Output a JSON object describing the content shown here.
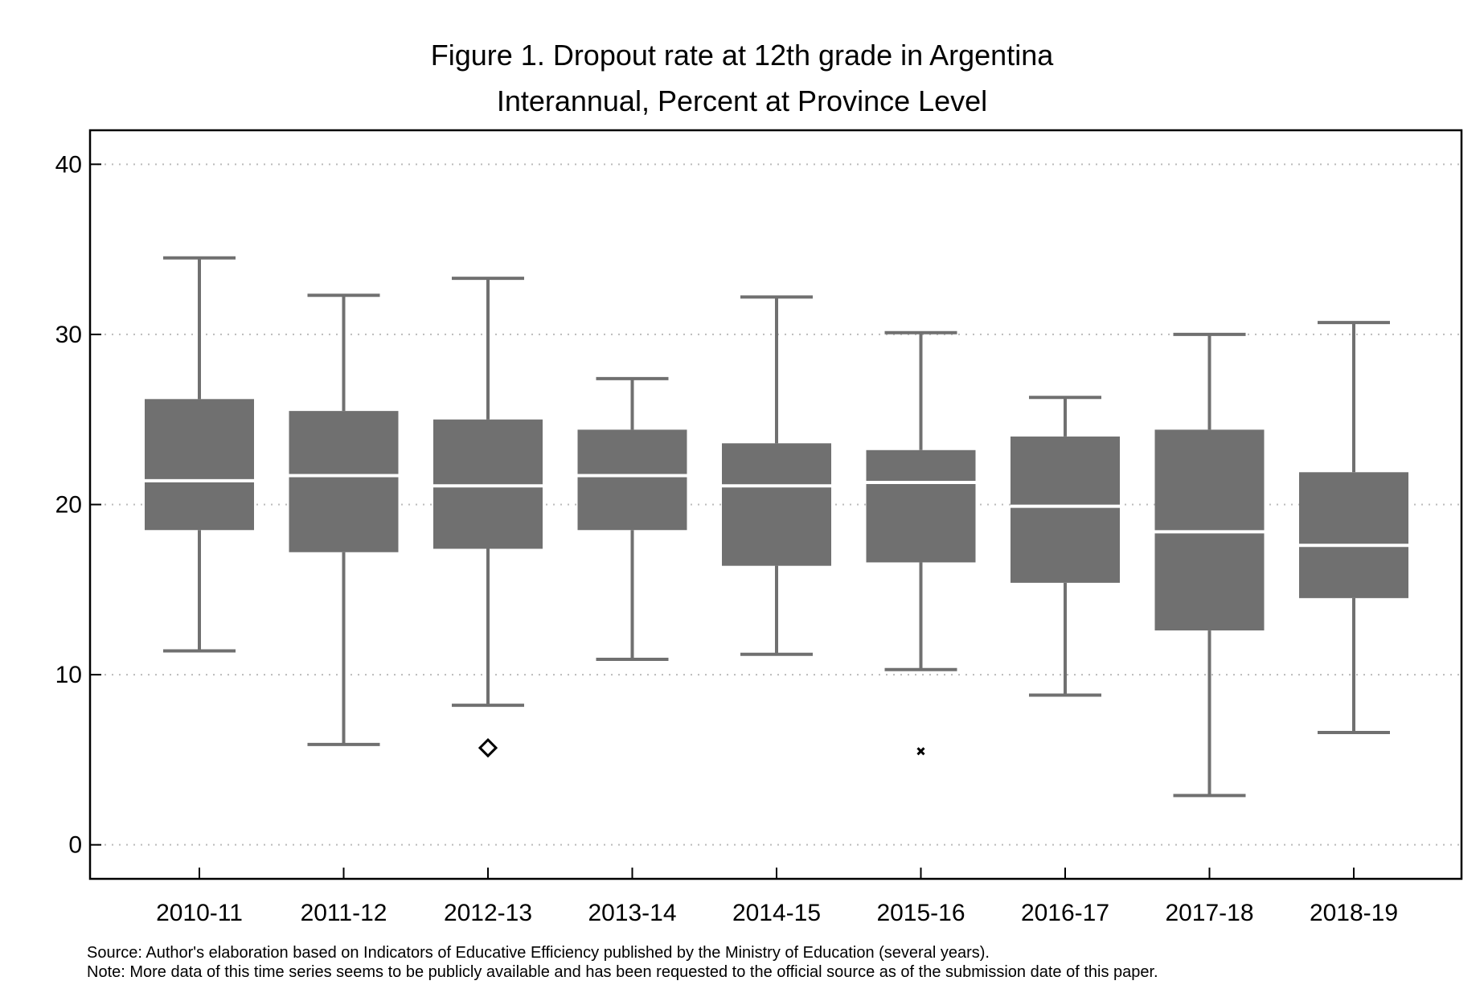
{
  "figure": {
    "title": "Figure 1. Dropout rate at 12th grade in Argentina",
    "subtitle": "Interannual, Percent at Province Level",
    "source": "Source: Author's elaboration based on Indicators of Educative Efficiency published by the Ministry of Education (several years).",
    "note": "Note: More data of this time series seems to be publicly available and has been requested to the official source as of the submission date of this paper."
  },
  "colors": {
    "box": "#707070",
    "median": "#ffffff",
    "grid": "#bbbbbb",
    "frame": "#000000"
  },
  "chart_data": {
    "type": "boxplot",
    "title": "Figure 1. Dropout rate at 12th grade in Argentina",
    "subtitle": "Interannual, Percent at Province Level",
    "xlabel": "",
    "ylabel": "",
    "ylim": [
      -2,
      42
    ],
    "yticks": [
      0,
      10,
      20,
      30,
      40
    ],
    "grid": "horizontal dotted",
    "legend": "none",
    "categories": [
      "2010-11",
      "2011-12",
      "2012-13",
      "2013-14",
      "2014-15",
      "2015-16",
      "2016-17",
      "2017-18",
      "2018-19"
    ],
    "boxes": [
      {
        "label": "2010-11",
        "min": 11.4,
        "q1": 18.5,
        "median": 21.4,
        "q3": 26.2,
        "max": 34.5
      },
      {
        "label": "2011-12",
        "min": 5.9,
        "q1": 17.2,
        "median": 21.7,
        "q3": 25.5,
        "max": 32.3
      },
      {
        "label": "2012-13",
        "min": 8.2,
        "q1": 17.4,
        "median": 21.1,
        "q3": 25.0,
        "max": 33.3
      },
      {
        "label": "2013-14",
        "min": 10.9,
        "q1": 18.5,
        "median": 21.7,
        "q3": 24.4,
        "max": 27.4
      },
      {
        "label": "2014-15",
        "min": 11.2,
        "q1": 16.4,
        "median": 21.1,
        "q3": 23.6,
        "max": 32.2
      },
      {
        "label": "2015-16",
        "min": 10.3,
        "q1": 16.6,
        "median": 21.3,
        "q3": 23.2,
        "max": 30.1
      },
      {
        "label": "2016-17",
        "min": 8.8,
        "q1": 15.4,
        "median": 19.9,
        "q3": 24.0,
        "max": 26.3
      },
      {
        "label": "2017-18",
        "min": 2.9,
        "q1": 12.6,
        "median": 18.4,
        "q3": 24.4,
        "max": 30.0
      },
      {
        "label": "2018-19",
        "min": 6.6,
        "q1": 14.5,
        "median": 17.6,
        "q3": 21.9,
        "max": 30.7
      }
    ],
    "outliers": [
      {
        "category": "2012-13",
        "value": 5.7,
        "marker": "diamond"
      },
      {
        "category": "2015-16",
        "value": 5.5,
        "marker": "x"
      }
    ]
  }
}
